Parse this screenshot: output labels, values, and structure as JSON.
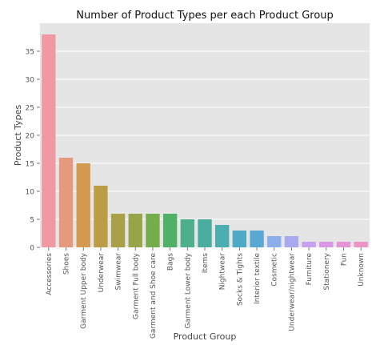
{
  "chart_data": {
    "type": "bar",
    "title": "Number of Product Types per each Product Group",
    "xlabel": "Product Group",
    "ylabel": "Product Types",
    "ylim": [
      0,
      40
    ],
    "yticks": [
      0,
      5,
      10,
      15,
      20,
      25,
      30,
      35
    ],
    "grid": true,
    "categories": [
      "Accessories",
      "Shoes",
      "Garment Upper body",
      "Underwear",
      "Swimwear",
      "Garment Full body",
      "Garment and Shoe care",
      "Bags",
      "Garment Lower body",
      "Items",
      "Nightwear",
      "Socks & Tights",
      "Interior textile",
      "Cosmetic",
      "Underwear/nightwear",
      "Furniture",
      "Stationery",
      "Fun",
      "Unknown"
    ],
    "values": [
      38,
      16,
      15,
      11,
      6,
      6,
      6,
      6,
      5,
      5,
      4,
      3,
      3,
      2,
      2,
      1,
      1,
      1,
      1
    ],
    "colors": [
      "#ef9aa2",
      "#e59a7d",
      "#d49a50",
      "#bb9d46",
      "#a9a047",
      "#97a448",
      "#75ad4c",
      "#4eb167",
      "#4daf8c",
      "#4badA0",
      "#4aadb0",
      "#4eaac4",
      "#59a8d4",
      "#8aaeea",
      "#aaa9f0",
      "#c7a0f0",
      "#dc96e8",
      "#e595d6",
      "#e994c4"
    ]
  }
}
